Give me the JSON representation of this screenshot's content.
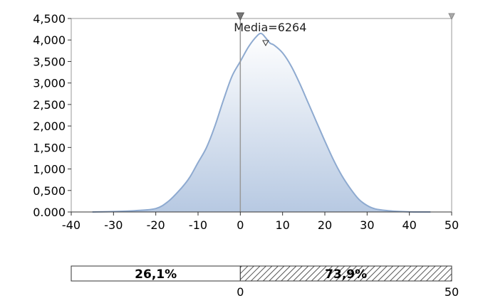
{
  "chart_data": {
    "type": "area",
    "x": [
      -35,
      -30,
      -25,
      -20,
      -17,
      -14,
      -12,
      -10,
      -8,
      -6,
      -4,
      -2,
      0,
      2,
      4,
      5,
      6,
      7,
      8,
      10,
      12,
      14,
      16,
      18,
      20,
      22,
      24,
      26,
      28,
      30,
      32,
      35,
      38,
      41,
      45
    ],
    "y": [
      0,
      0.01,
      0.03,
      0.08,
      0.25,
      0.55,
      0.8,
      1.15,
      1.5,
      2.0,
      2.6,
      3.15,
      3.5,
      3.85,
      4.1,
      4.15,
      4.05,
      3.93,
      3.88,
      3.7,
      3.4,
      3.0,
      2.55,
      2.1,
      1.65,
      1.22,
      0.85,
      0.55,
      0.3,
      0.15,
      0.07,
      0.03,
      0.01,
      0.0,
      0.0
    ],
    "xlim": [
      -40,
      50
    ],
    "ylim": [
      0,
      4.5
    ],
    "x_ticks": [
      "-40",
      "-30",
      "-20",
      "-10",
      "0",
      "10",
      "20",
      "30",
      "40",
      "50"
    ],
    "y_ticks": [
      "0.000",
      "0,500",
      "1,000",
      "1,500",
      "2,000",
      "2,500",
      "3,000",
      "3,500",
      "4,000",
      "4,500"
    ],
    "annotation": "Media=6264",
    "mean_marker_x": 6,
    "left_limit_x": 0,
    "right_limit_x": 50,
    "fill_top_color": "#ffffff",
    "fill_bottom_color": "#b7c9e2",
    "line_color": "#8eaad0",
    "grid": false,
    "probability_bar": {
      "left_label": "26,1%",
      "right_label": "73,9%",
      "left_fraction": 0.261,
      "right_fraction": 0.739,
      "start_label": "0",
      "end_label": "50"
    }
  }
}
